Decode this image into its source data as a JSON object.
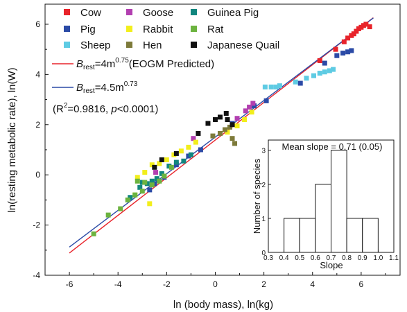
{
  "chart_data": [
    {
      "type": "scatter",
      "xlabel": "ln (body mass), ln(kg)",
      "ylabel": "ln(resting metabolic rate), ln(W)",
      "xlim": [
        -7,
        7.6
      ],
      "ylim": [
        -4,
        6.8
      ],
      "xticks": [
        -6,
        -4,
        -2,
        0,
        2,
        4,
        6
      ],
      "xtick_labels": [
        "-6",
        "-4",
        "-2",
        "0",
        "2",
        "4",
        "6"
      ],
      "yticks": [
        -4,
        -2,
        0,
        2,
        4,
        6
      ],
      "ytick_labels": [
        "-4",
        "-2",
        "0",
        "2",
        "4",
        "6"
      ],
      "grid": false,
      "legend_position": "top-left",
      "series": [
        {
          "name": "Cow",
          "color": "#e8232a",
          "points": [
            [
              4.3,
              4.55
            ],
            [
              4.95,
              5.0
            ],
            [
              5.3,
              5.3
            ],
            [
              5.45,
              5.45
            ],
            [
              5.6,
              5.55
            ],
            [
              5.7,
              5.62
            ],
            [
              5.8,
              5.72
            ],
            [
              5.9,
              5.82
            ],
            [
              6.0,
              5.88
            ],
            [
              6.1,
              5.95
            ],
            [
              6.2,
              6.0
            ],
            [
              6.35,
              5.9
            ]
          ]
        },
        {
          "name": "Pig",
          "color": "#2b4aa6",
          "points": [
            [
              -2.7,
              -0.6
            ],
            [
              -2.5,
              -0.35
            ],
            [
              -2.1,
              -0.1
            ],
            [
              -1.6,
              0.4
            ],
            [
              -1.1,
              0.75
            ],
            [
              -0.6,
              1.0
            ],
            [
              0.7,
              2.05
            ],
            [
              1.6,
              2.75
            ],
            [
              2.1,
              2.95
            ],
            [
              3.5,
              3.65
            ],
            [
              4.5,
              4.45
            ],
            [
              5.0,
              4.75
            ],
            [
              5.25,
              4.85
            ],
            [
              5.45,
              4.9
            ],
            [
              5.6,
              4.95
            ]
          ]
        },
        {
          "name": "Sheep",
          "color": "#5ecbe3",
          "points": [
            [
              2.05,
              3.5
            ],
            [
              2.3,
              3.5
            ],
            [
              2.5,
              3.5
            ],
            [
              2.65,
              3.55
            ],
            [
              3.3,
              3.7
            ],
            [
              3.75,
              3.85
            ],
            [
              4.05,
              3.95
            ],
            [
              4.3,
              4.05
            ],
            [
              4.5,
              4.1
            ],
            [
              4.7,
              4.15
            ],
            [
              4.85,
              4.2
            ]
          ]
        },
        {
          "name": "Goose",
          "color": "#b23fb0",
          "points": [
            [
              0.9,
              2.25
            ],
            [
              1.25,
              2.55
            ],
            [
              1.4,
              2.7
            ],
            [
              1.55,
              2.85
            ],
            [
              -0.9,
              1.45
            ],
            [
              -2.45,
              0.1
            ]
          ]
        },
        {
          "name": "Rabbit",
          "color": "#f2ee1c",
          "points": [
            [
              -3.2,
              -0.1
            ],
            [
              -2.9,
              0.1
            ],
            [
              -2.6,
              0.4
            ],
            [
              -2.3,
              0.45
            ],
            [
              -2.0,
              0.6
            ],
            [
              -1.7,
              0.8
            ],
            [
              -1.4,
              0.95
            ],
            [
              -1.1,
              1.1
            ],
            [
              -0.8,
              1.3
            ],
            [
              0.5,
              1.7
            ],
            [
              0.9,
              1.95
            ],
            [
              1.2,
              2.2
            ],
            [
              1.5,
              2.5
            ],
            [
              -2.7,
              -1.15
            ],
            [
              -3.3,
              -0.8
            ]
          ]
        },
        {
          "name": "Hen",
          "color": "#7d7a3a",
          "points": [
            [
              -0.1,
              1.55
            ],
            [
              0.2,
              1.65
            ],
            [
              0.4,
              1.8
            ],
            [
              0.6,
              1.9
            ],
            [
              0.7,
              1.45
            ],
            [
              0.8,
              1.25
            ]
          ]
        },
        {
          "name": "Guinea Pig",
          "color": "#11867e",
          "points": [
            [
              -3.5,
              -0.9
            ],
            [
              -3.1,
              -0.5
            ],
            [
              -3.0,
              -0.3
            ],
            [
              -2.8,
              -0.35
            ],
            [
              -2.6,
              -0.25
            ],
            [
              -2.4,
              -0.15
            ],
            [
              -2.2,
              0.05
            ],
            [
              -1.9,
              0.35
            ],
            [
              -1.6,
              0.5
            ],
            [
              -1.3,
              0.55
            ],
            [
              -1.0,
              0.8
            ]
          ]
        },
        {
          "name": "Rat",
          "color": "#6cb33f",
          "points": [
            [
              -5.0,
              -2.35
            ],
            [
              -4.4,
              -1.6
            ],
            [
              -3.9,
              -1.35
            ],
            [
              -3.6,
              -1.0
            ],
            [
              -3.3,
              -0.8
            ],
            [
              -3.0,
              -0.65
            ],
            [
              -3.2,
              -0.25
            ],
            [
              -2.9,
              -0.3
            ],
            [
              -2.6,
              -0.4
            ],
            [
              -2.3,
              -0.25
            ],
            [
              -2.1,
              -0.05
            ],
            [
              -1.8,
              0.3
            ]
          ]
        },
        {
          "name": "Japanese Quail",
          "color": "#111111",
          "points": [
            [
              -1.6,
              0.85
            ],
            [
              -0.7,
              1.65
            ],
            [
              -0.3,
              2.05
            ],
            [
              0.0,
              2.2
            ],
            [
              0.2,
              2.3
            ],
            [
              0.45,
              2.45
            ],
            [
              0.5,
              2.2
            ],
            [
              0.7,
              2.0
            ],
            [
              -2.2,
              0.6
            ],
            [
              -2.5,
              0.3
            ]
          ]
        }
      ],
      "fit_lines": [
        {
          "name": "EOGM",
          "color": "#e8232a",
          "coef": 4,
          "exponent": 0.75,
          "x_range": [
            -6,
            6.5
          ]
        },
        {
          "name": "Fit",
          "color": "#2b4aa6",
          "coef": 4.5,
          "exponent": 0.73,
          "x_range": [
            -6,
            6.5
          ]
        }
      ]
    },
    {
      "type": "bar",
      "title": "Mean slope = 0.71 (0.05)",
      "xlabel": "Slope",
      "ylabel": "Number of species",
      "bin_edges": [
        0.4,
        0.5,
        0.6,
        0.7,
        0.8,
        0.9,
        1.0
      ],
      "values": [
        1,
        1,
        2,
        3,
        1,
        1
      ],
      "xlim": [
        0.3,
        1.1
      ],
      "ylim": [
        0,
        3.3
      ],
      "xticks": [
        "0.3",
        "0.4",
        "0.5",
        "0.6",
        "0.7",
        "0.8",
        "0.9",
        "1.0",
        "1.1"
      ],
      "yticks": [
        "0",
        "1",
        "2",
        "3"
      ]
    }
  ],
  "legend": {
    "cow": "Cow",
    "goose": "Goose",
    "guinea_pig": "Guinea Pig",
    "pig": "Pig",
    "rabbit": "Rabbit",
    "rat": "Rat",
    "sheep": "Sheep",
    "hen": "Hen",
    "japanese_quail": "Japanese Quail",
    "fit1_b": "B",
    "fit1_sub": "rest",
    "fit1_eq": "=4m",
    "fit1_exp": "0.75",
    "fit1_tail": "(EOGM Predicted)",
    "fit2_b": "B",
    "fit2_sub": "rest",
    "fit2_eq": "=4.5m",
    "fit2_exp": "0.73",
    "r2_open": "(R",
    "r2_sup": "2",
    "r2_mid": "=0.9816, ",
    "r2_p": "p",
    "r2_close": "<0.0001)"
  }
}
